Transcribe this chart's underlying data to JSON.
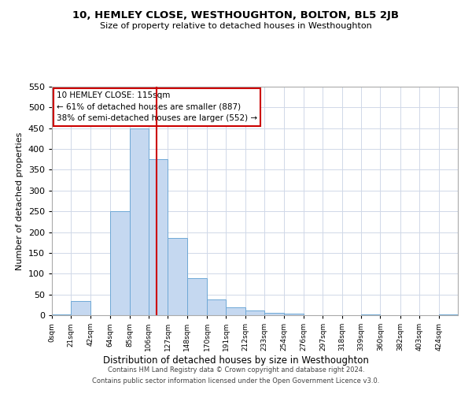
{
  "title": "10, HEMLEY CLOSE, WESTHOUGHTON, BOLTON, BL5 2JB",
  "subtitle": "Size of property relative to detached houses in Westhoughton",
  "xlabel": "Distribution of detached houses by size in Westhoughton",
  "ylabel": "Number of detached properties",
  "footer_line1": "Contains HM Land Registry data © Crown copyright and database right 2024.",
  "footer_line2": "Contains public sector information licensed under the Open Government Licence v3.0.",
  "annotation_title": "10 HEMLEY CLOSE: 115sqm",
  "annotation_line1": "← 61% of detached houses are smaller (887)",
  "annotation_line2": "38% of semi-detached houses are larger (552) →",
  "property_size": 115,
  "bar_labels": [
    "0sqm",
    "21sqm",
    "42sqm",
    "64sqm",
    "85sqm",
    "106sqm",
    "127sqm",
    "148sqm",
    "170sqm",
    "191sqm",
    "212sqm",
    "233sqm",
    "254sqm",
    "276sqm",
    "297sqm",
    "318sqm",
    "339sqm",
    "360sqm",
    "382sqm",
    "403sqm",
    "424sqm"
  ],
  "bar_edges": [
    0,
    21,
    42,
    64,
    85,
    106,
    127,
    148,
    170,
    191,
    212,
    233,
    254,
    276,
    297,
    318,
    339,
    360,
    382,
    403,
    424,
    445
  ],
  "bar_heights": [
    2,
    35,
    0,
    250,
    450,
    375,
    185,
    90,
    38,
    19,
    11,
    5,
    4,
    0,
    0,
    0,
    2,
    0,
    0,
    0,
    2
  ],
  "bar_color": "#c5d8f0",
  "bar_edge_color": "#6fa8d6",
  "property_line_color": "#cc0000",
  "annotation_box_color": "#ffffff",
  "annotation_box_edge": "#cc0000",
  "background_color": "#ffffff",
  "grid_color": "#d0d8e8",
  "ylim": [
    0,
    550
  ],
  "yticks": [
    0,
    50,
    100,
    150,
    200,
    250,
    300,
    350,
    400,
    450,
    500,
    550
  ]
}
